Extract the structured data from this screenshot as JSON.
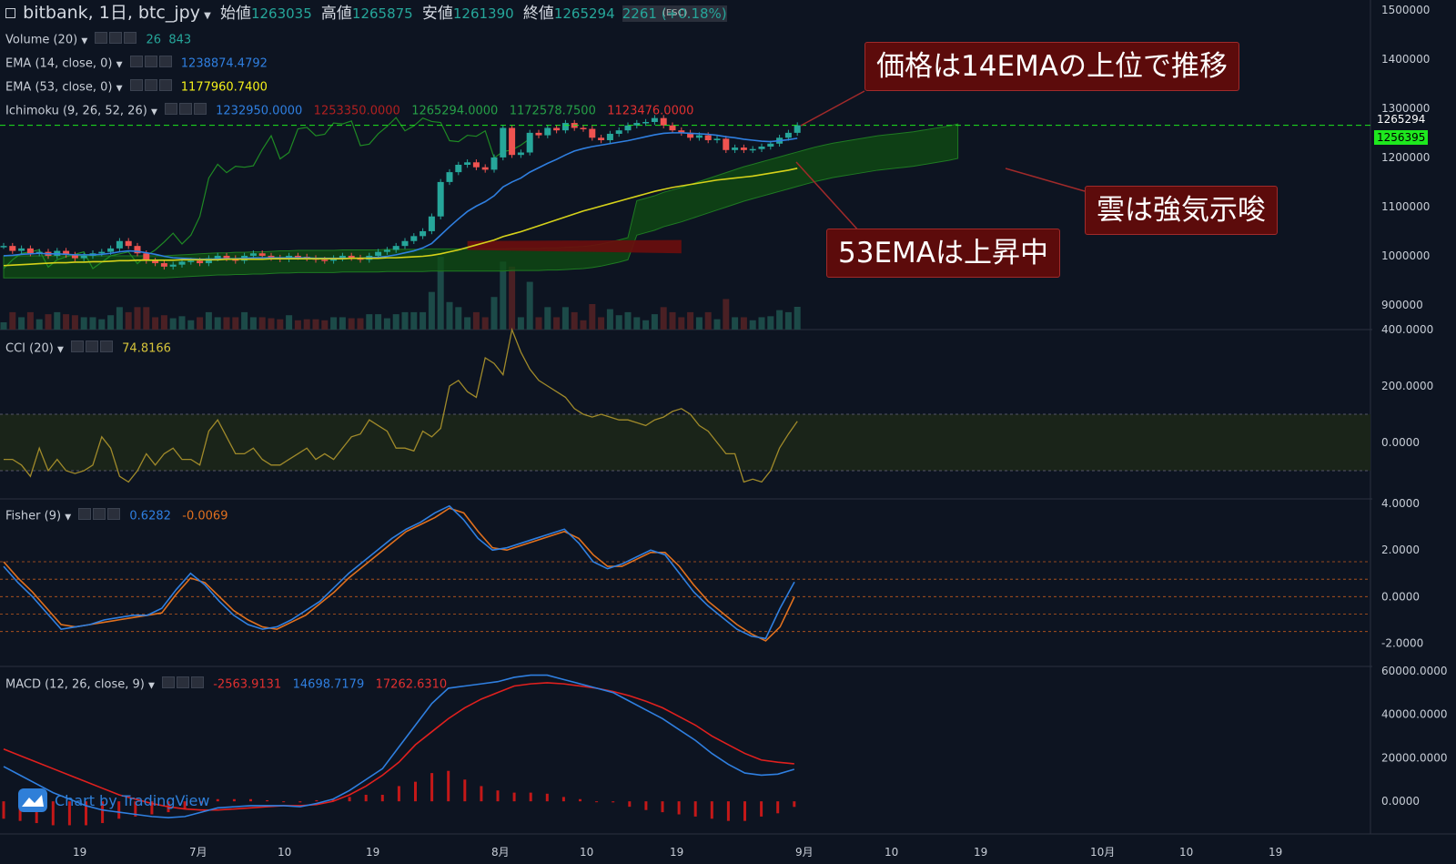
{
  "header": {
    "title": "bitbank, 1日, btc_jpy",
    "ohlc": [
      {
        "label": "始値",
        "value": "1263035"
      },
      {
        "label": "高値",
        "value": "1265875"
      },
      {
        "label": "安値",
        "value": "1261390"
      },
      {
        "label": "終値",
        "value": "1265294"
      }
    ],
    "change": "2261 (+0.18%)",
    "esc_hint": "(ESC)"
  },
  "indicators": {
    "volume": {
      "label": "Volume (20)",
      "v1": "26",
      "v2": "843"
    },
    "ema14": {
      "label": "EMA (14, close, 0)",
      "value": "1238874.4792"
    },
    "ema53": {
      "label": "EMA (53, close, 0)",
      "value": "1177960.7400"
    },
    "ichimoku": {
      "label": "Ichimoku (9, 26, 52, 26)",
      "values": [
        "1232950.0000",
        "1253350.0000",
        "1265294.0000",
        "1172578.7500",
        "1123476.0000"
      ]
    },
    "cci": {
      "label": "CCI (20)",
      "value": "74.8166"
    },
    "fisher": {
      "label": "Fisher (9)",
      "v1": "0.6282",
      "v2": "-0.0069"
    },
    "macd": {
      "label": "MACD (12, 26, close, 9)",
      "v1": "-2563.9131",
      "v2": "14698.7179",
      "v3": "17262.6310"
    }
  },
  "annotations": {
    "a1": "価格は14EMAの上位で推移",
    "a2": "雲は強気示唆",
    "a3": "53EMAは上昇中"
  },
  "branding": "Chart by TradingView",
  "price_axis": {
    "ticks": [
      "1500000",
      "1400000",
      "1300000",
      "1200000",
      "1100000",
      "1000000",
      "900000"
    ],
    "last_price": "1265294",
    "ema_tag": "1256395"
  },
  "cci_axis": {
    "ticks": [
      "400.0000",
      "200.0000",
      "0.0000"
    ]
  },
  "fisher_axis": {
    "ticks": [
      "4.0000",
      "2.0000",
      "0.0000",
      "-2.0000"
    ]
  },
  "macd_axis": {
    "ticks": [
      "60000.0000",
      "40000.0000",
      "20000.0000",
      "0.0000"
    ]
  },
  "time_axis": {
    "ticks": [
      "19",
      "7月",
      "10",
      "19",
      "8月",
      "10",
      "19",
      "9月",
      "10",
      "19",
      "10月",
      "10",
      "19"
    ]
  },
  "colors": {
    "bg": "#0d1421",
    "up": "#26a69a",
    "down": "#ef5350",
    "ema14": "#2f7fe0",
    "ema53": "#d6d21a",
    "cloud_bull": "#0f4d12",
    "cloud_bear": "#6b0d0d",
    "cci": "#a08a2a",
    "fisher1": "#2f7fe0",
    "fisher2": "#e0701e",
    "macd": "#2f7fe0",
    "signal": "#e0201e"
  },
  "chart_data": [
    {
      "type": "candlestick",
      "title": "bitbank, 1日, btc_jpy",
      "ylim": [
        850000,
        1520000
      ],
      "x_index_range": [
        0,
        90
      ],
      "close": [
        1020000,
        1010000,
        1015000,
        1005000,
        1008000,
        1000000,
        1010000,
        1002000,
        995000,
        1000000,
        1005000,
        1008000,
        1015000,
        1030000,
        1020000,
        1005000,
        990000,
        985000,
        978000,
        982000,
        988000,
        990000,
        985000,
        995000,
        1000000,
        995000,
        990000,
        1000000,
        1005000,
        1000000,
        996000,
        993000,
        1000000,
        998000,
        995000,
        992000,
        990000,
        995000,
        1000000,
        996000,
        992000,
        1000000,
        1008000,
        1012000,
        1020000,
        1030000,
        1040000,
        1050000,
        1080000,
        1150000,
        1170000,
        1185000,
        1190000,
        1180000,
        1175000,
        1200000,
        1260000,
        1205000,
        1210000,
        1250000,
        1245000,
        1260000,
        1255000,
        1270000,
        1260000,
        1258000,
        1240000,
        1235000,
        1248000,
        1255000,
        1265000,
        1270000,
        1272000,
        1280000,
        1265000,
        1255000,
        1250000,
        1240000,
        1245000,
        1235000,
        1238000,
        1215000,
        1220000,
        1215000,
        1217000,
        1222000,
        1228000,
        1240000,
        1250000,
        1265294
      ],
      "ema14": [
        1000000,
        1001000,
        1003000,
        1004000,
        1005000,
        1004000,
        1004000,
        1003000,
        1002000,
        1002000,
        1002000,
        1003000,
        1005000,
        1008000,
        1010000,
        1009000,
        1006000,
        1003000,
        999000,
        996000,
        995000,
        994000,
        993000,
        993000,
        994000,
        994000,
        994000,
        995000,
        996000,
        996000,
        996000,
        996000,
        996000,
        996000,
        996000,
        995000,
        995000,
        995000,
        995000,
        995000,
        995000,
        996000,
        997000,
        999000,
        1002000,
        1006000,
        1010000,
        1016000,
        1025000,
        1042000,
        1059000,
        1075000,
        1090000,
        1101000,
        1110000,
        1122000,
        1140000,
        1150000,
        1158000,
        1170000,
        1179000,
        1188000,
        1196000,
        1205000,
        1213000,
        1218000,
        1222000,
        1225000,
        1228000,
        1231000,
        1234000,
        1238000,
        1242000,
        1246000,
        1249000,
        1250000,
        1250000,
        1249000,
        1248000,
        1247000,
        1245000,
        1242000,
        1240000,
        1237000,
        1235000,
        1233000,
        1232000,
        1234000,
        1236000,
        1238874
      ],
      "ema53": [
        980000,
        981000,
        982000,
        983000,
        984000,
        985000,
        986000,
        986000,
        987000,
        987000,
        988000,
        988000,
        989000,
        990000,
        990000,
        991000,
        991000,
        991000,
        991000,
        991000,
        992000,
        992000,
        992000,
        992000,
        992000,
        993000,
        993000,
        993000,
        993000,
        993000,
        994000,
        994000,
        994000,
        994000,
        994000,
        994000,
        994000,
        994000,
        994000,
        995000,
        995000,
        995000,
        995000,
        996000,
        996000,
        997000,
        998000,
        999000,
        1001000,
        1004000,
        1008000,
        1012000,
        1017000,
        1022000,
        1027000,
        1032000,
        1039000,
        1044000,
        1049000,
        1055000,
        1061000,
        1067000,
        1073000,
        1079000,
        1085000,
        1091000,
        1096000,
        1101000,
        1106000,
        1111000,
        1116000,
        1121000,
        1126000,
        1131000,
        1135000,
        1139000,
        1142000,
        1145000,
        1148000,
        1151000,
        1154000,
        1156000,
        1158000,
        1160000,
        1162000,
        1165000,
        1168000,
        1171000,
        1174000,
        1177960
      ]
    },
    {
      "type": "line",
      "title": "CCI (20)",
      "ylim": [
        -200,
        400
      ],
      "y": [
        -60,
        -60,
        -80,
        -120,
        -20,
        -100,
        -60,
        -100,
        -110,
        -100,
        -80,
        20,
        -20,
        -120,
        -140,
        -100,
        -40,
        -80,
        -40,
        -20,
        -60,
        -60,
        -80,
        40,
        80,
        20,
        -40,
        -40,
        -20,
        -60,
        -80,
        -80,
        -60,
        -40,
        -20,
        -60,
        -40,
        -60,
        -20,
        20,
        30,
        80,
        60,
        40,
        -20,
        -20,
        -30,
        40,
        20,
        50,
        200,
        220,
        180,
        160,
        300,
        280,
        240,
        400,
        320,
        260,
        220,
        200,
        180,
        160,
        120,
        100,
        90,
        100,
        90,
        80,
        80,
        70,
        60,
        80,
        90,
        110,
        120,
        100,
        60,
        40,
        0,
        -40,
        -40,
        -140,
        -130,
        -140,
        -100,
        -20,
        30,
        74.8166
      ]
    },
    {
      "type": "line",
      "title": "Fisher (9)",
      "ylim": [
        -3,
        4.2
      ],
      "series": [
        {
          "values": [
            1.3,
            0.6,
            0,
            -0.7,
            -1.4,
            -1.3,
            -1.2,
            -1.0,
            -0.9,
            -0.8,
            -0.8,
            -0.5,
            0.3,
            1.0,
            0.5,
            -0.2,
            -0.8,
            -1.2,
            -1.4,
            -1.3,
            -1.0,
            -0.6,
            -0.2,
            0.4,
            1.0,
            1.5,
            2.0,
            2.5,
            2.9,
            3.2,
            3.6,
            3.9,
            3.3,
            2.5,
            2.0,
            2.1,
            2.3,
            2.5,
            2.7,
            2.9,
            2.3,
            1.5,
            1.2,
            1.4,
            1.7,
            2.0,
            1.8,
            1.0,
            0.2,
            -0.4,
            -0.9,
            -1.4,
            -1.7,
            -1.8,
            -0.5,
            0.6282
          ]
        },
        {
          "values": [
            1.5,
            0.8,
            0.2,
            -0.5,
            -1.2,
            -1.3,
            -1.2,
            -1.1,
            -1.0,
            -0.9,
            -0.8,
            -0.7,
            0.1,
            0.8,
            0.6,
            0,
            -0.6,
            -1.0,
            -1.3,
            -1.4,
            -1.1,
            -0.8,
            -0.3,
            0.2,
            0.8,
            1.3,
            1.8,
            2.3,
            2.8,
            3.1,
            3.4,
            3.8,
            3.6,
            2.8,
            2.1,
            2.0,
            2.2,
            2.4,
            2.6,
            2.8,
            2.5,
            1.8,
            1.3,
            1.3,
            1.6,
            1.9,
            1.9,
            1.3,
            0.5,
            -0.2,
            -0.7,
            -1.2,
            -1.6,
            -1.9,
            -1.3,
            -0.0069
          ]
        }
      ]
    },
    {
      "type": "bar+line",
      "title": "MACD (12, 26, close, 9)",
      "ylim": [
        -15000,
        62000
      ],
      "series": [
        {
          "name": "MACD",
          "values": [
            16000,
            12000,
            8000,
            4000,
            1000,
            -2000,
            -4000,
            -5000,
            -6000,
            -7000,
            -7500,
            -7000,
            -5000,
            -3000,
            -2500,
            -2000,
            -2000,
            -2000,
            -2500,
            -1000,
            1000,
            5000,
            10000,
            15000,
            25000,
            35000,
            45000,
            52000,
            53000,
            54000,
            55000,
            57000,
            58000,
            58000,
            56000,
            54000,
            52000,
            50000,
            46000,
            42000,
            38000,
            33000,
            28000,
            22000,
            17000,
            13000,
            12000,
            12500,
            14698.7179
          ]
        },
        {
          "name": "Signal",
          "values": [
            24000,
            21000,
            18000,
            15000,
            12000,
            9000,
            6000,
            3000,
            1000,
            -1000,
            -2500,
            -3500,
            -4000,
            -4000,
            -3500,
            -3000,
            -2500,
            -2000,
            -2000,
            -1500,
            0,
            3000,
            7000,
            12000,
            18000,
            26000,
            32000,
            38000,
            43000,
            47000,
            50000,
            53000,
            54000,
            54500,
            54000,
            53000,
            52000,
            50500,
            48500,
            46000,
            43000,
            39000,
            35000,
            30000,
            26000,
            22000,
            19000,
            18000,
            17262.631
          ]
        },
        {
          "name": "Histogram",
          "values": [
            -8000,
            -9000,
            -10000,
            -11000,
            -11000,
            -11000,
            -10000,
            -8000,
            -7000,
            -6000,
            -5000,
            -3500,
            -1000,
            1000,
            1000,
            1000,
            500,
            0,
            -500,
            500,
            1000,
            2000,
            3000,
            3000,
            7000,
            9000,
            13000,
            14000,
            10000,
            7000,
            5000,
            4000,
            4000,
            3500,
            2000,
            1000,
            0,
            -500,
            -2500,
            -4000,
            -5000,
            -6000,
            -7000,
            -8000,
            -9000,
            -9000,
            -7000,
            -5500,
            -2563.9131
          ]
        }
      ]
    }
  ]
}
